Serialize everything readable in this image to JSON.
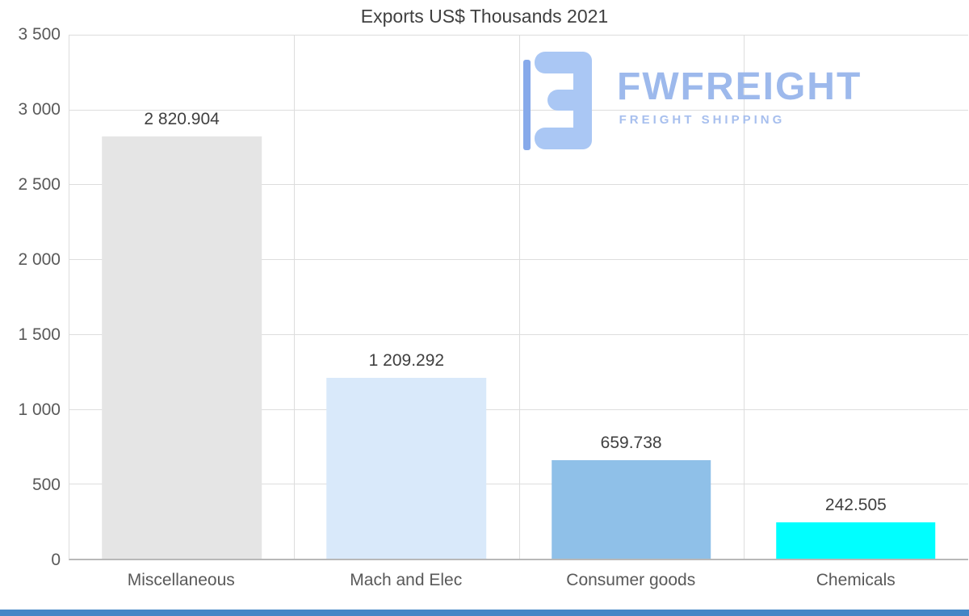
{
  "logo": {
    "name": "FWFREIGHT",
    "tagline": "FREIGHT SHIPPING"
  },
  "chart_data": {
    "type": "bar",
    "title": "Exports US$ Thousands 2021",
    "categories": [
      "Miscellaneous",
      "Mach and Elec",
      "Consumer goods",
      "Chemicals"
    ],
    "values": [
      2820.904,
      1209.292,
      659.738,
      242.505
    ],
    "value_labels": [
      "2 820.904",
      "1 209.292",
      "659.738",
      "242.505"
    ],
    "bar_colors": [
      "#e5e5e5",
      "#d9e9fa",
      "#8fc0e8",
      "#00ffff"
    ],
    "xlabel": "",
    "ylabel": "",
    "ylim": [
      0,
      3500
    ],
    "yticks": [
      {
        "value": 0,
        "label": "0"
      },
      {
        "value": 500,
        "label": "500"
      },
      {
        "value": 1000,
        "label": "1 000"
      },
      {
        "value": 1500,
        "label": "1 500"
      },
      {
        "value": 2000,
        "label": "2 000"
      },
      {
        "value": 2500,
        "label": "2 500"
      },
      {
        "value": 3000,
        "label": "3 000"
      },
      {
        "value": 3500,
        "label": "3 500"
      }
    ],
    "grid": true,
    "legend": false,
    "colors": {
      "gridline": "#dddddd",
      "axis_line": "#b8b8b8",
      "title_text": "#404040",
      "tick_text": "#595959",
      "value_text": "#404040",
      "brand_blue": "#9db9ec",
      "brand_blue_light": "#aac7f4",
      "brand_blue_dark": "#86a9ea",
      "bottom_strip": "#4486c6"
    }
  }
}
